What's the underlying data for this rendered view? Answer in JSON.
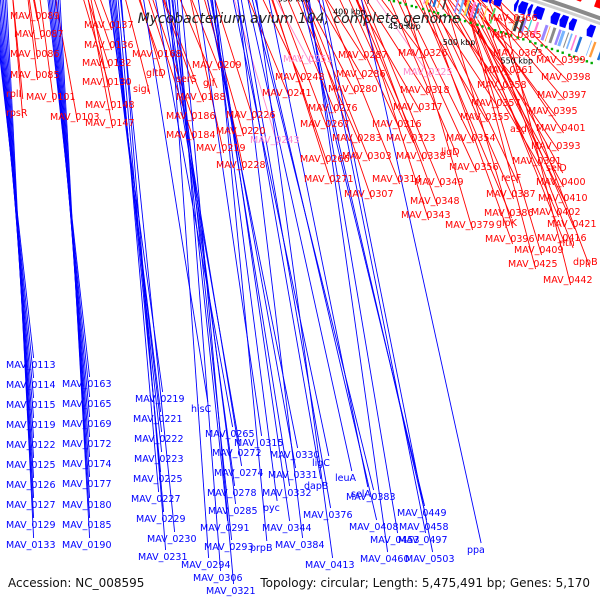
{
  "title": "Mycobacterium avium 104, complete genome",
  "footer": {
    "accession": "Accession: NC_008595",
    "summary": "Topology: circular; Length: 5,475,491 bp; Genes: 5,170"
  },
  "colors": {
    "forward": "#ff0000",
    "reverse": "#0000ff",
    "highlight": "#ff88cc",
    "backbone": "#8a8a8a",
    "rna_marks": "#00aa00"
  },
  "ticks": [
    "100 kbp",
    "150 kbp",
    "200 kbp",
    "250 kbp",
    "300 kbp",
    "350 kbp",
    "400 kbp",
    "450 kbp",
    "500 kbp",
    "550 kbp"
  ],
  "top_labels": [
    {
      "text": "MAV_0089",
      "c": "r"
    },
    {
      "text": "MAV_0087",
      "c": "r"
    },
    {
      "text": "MAV_0086",
      "c": "r"
    },
    {
      "text": "MAV_0085",
      "c": "r"
    },
    {
      "text": "rplI",
      "c": "r"
    },
    {
      "text": "rpsR",
      "c": "r"
    },
    {
      "text": "MAV_0101",
      "c": "r"
    },
    {
      "text": "MAV_0103",
      "c": "r"
    },
    {
      "text": "MAV_0137",
      "c": "r"
    },
    {
      "text": "MAV_0136",
      "c": "r"
    },
    {
      "text": "MAV_0132",
      "c": "r"
    },
    {
      "text": "MAV_0130",
      "c": "r"
    },
    {
      "text": "MAV_0148",
      "c": "r"
    },
    {
      "text": "MAV_0147",
      "c": "r"
    },
    {
      "text": "MAV_0168",
      "c": "r"
    },
    {
      "text": "gltD",
      "c": "r"
    },
    {
      "text": "sigI",
      "c": "r"
    },
    {
      "text": "serS",
      "c": "r"
    },
    {
      "text": "glf",
      "c": "r"
    },
    {
      "text": "MAV_0188",
      "c": "r"
    },
    {
      "text": "MAV_0186",
      "c": "r"
    },
    {
      "text": "MAV_0184",
      "c": "r"
    },
    {
      "text": "MAV_0209",
      "c": "r"
    },
    {
      "text": "MAV_0226",
      "c": "r"
    },
    {
      "text": "MAV_0220",
      "c": "r"
    },
    {
      "text": "MAV_0219",
      "c": "r"
    },
    {
      "text": "MAV_0228",
      "c": "r"
    },
    {
      "text": "MAV_0243",
      "c": "p"
    },
    {
      "text": "MAV_0241",
      "c": "r"
    },
    {
      "text": "MAV_0248",
      "c": "r"
    },
    {
      "text": "MAV_0251",
      "c": "p"
    },
    {
      "text": "MAV_0287",
      "c": "r"
    },
    {
      "text": "MAV_0286",
      "c": "r"
    },
    {
      "text": "MAV_0280",
      "c": "r"
    },
    {
      "text": "MAV_0276",
      "c": "r"
    },
    {
      "text": "MAV_0267",
      "c": "r"
    },
    {
      "text": "MAV_0283",
      "c": "r"
    },
    {
      "text": "MAV_0266",
      "c": "r"
    },
    {
      "text": "MAV_0271",
      "c": "r"
    },
    {
      "text": "MAV_0303",
      "c": "r"
    },
    {
      "text": "MAV_0307",
      "c": "r"
    },
    {
      "text": "MAV_0314",
      "c": "r"
    },
    {
      "text": "MAV_0326",
      "c": "r"
    },
    {
      "text": "MAV_0325",
      "c": "p"
    },
    {
      "text": "MAV_0318",
      "c": "r"
    },
    {
      "text": "MAV_0317",
      "c": "r"
    },
    {
      "text": "MAV_0316",
      "c": "r"
    },
    {
      "text": "MAV_0323",
      "c": "r"
    },
    {
      "text": "MAV_0338",
      "c": "r"
    },
    {
      "text": "MAV_0349",
      "c": "r"
    },
    {
      "text": "MAV_0348",
      "c": "r"
    },
    {
      "text": "MAV_0343",
      "c": "r"
    },
    {
      "text": "MAV_0366",
      "c": "r"
    },
    {
      "text": "MAV_0365",
      "c": "r"
    },
    {
      "text": "MAV_0363",
      "c": "r"
    },
    {
      "text": "MAV_0361",
      "c": "r"
    },
    {
      "text": "MAV_0358",
      "c": "r"
    },
    {
      "text": "MAV_0357",
      "c": "r"
    },
    {
      "text": "MAV_0355",
      "c": "r"
    },
    {
      "text": "MAV_0354",
      "c": "r"
    },
    {
      "text": "ligD",
      "c": "r"
    },
    {
      "text": "MAV_0356",
      "c": "r"
    },
    {
      "text": "MAV_0399",
      "c": "r"
    },
    {
      "text": "MAV_0398",
      "c": "r"
    },
    {
      "text": "MAV_0397",
      "c": "r"
    },
    {
      "text": "MAV_0395",
      "c": "r"
    },
    {
      "text": "asd",
      "c": "r"
    },
    {
      "text": "MAV_0401",
      "c": "r"
    },
    {
      "text": "MAV_0393",
      "c": "r"
    },
    {
      "text": "MAV_0391",
      "c": "r"
    },
    {
      "text": "selD",
      "c": "r"
    },
    {
      "text": "recF",
      "c": "r"
    },
    {
      "text": "MAV_0400",
      "c": "r"
    },
    {
      "text": "MAV_0387",
      "c": "r"
    },
    {
      "text": "MAV_0410",
      "c": "r"
    },
    {
      "text": "MAV_0386",
      "c": "r"
    },
    {
      "text": "MAV_0402",
      "c": "r"
    },
    {
      "text": "MAV_0379",
      "c": "r"
    },
    {
      "text": "glpK",
      "c": "r"
    },
    {
      "text": "MAV_0421",
      "c": "r"
    },
    {
      "text": "MAV_0396",
      "c": "r"
    },
    {
      "text": "MAV_0416",
      "c": "r"
    },
    {
      "text": "nth",
      "c": "r"
    },
    {
      "text": "MAV_0409",
      "c": "r"
    },
    {
      "text": "dppB",
      "c": "r"
    },
    {
      "text": "MAV_0425",
      "c": "r"
    },
    {
      "text": "MAV_0442",
      "c": "r"
    }
  ],
  "bottom_labels": [
    {
      "text": "MAV_0113"
    },
    {
      "text": "MAV_0114"
    },
    {
      "text": "MAV_0115"
    },
    {
      "text": "MAV_0119"
    },
    {
      "text": "MAV_0122"
    },
    {
      "text": "MAV_0125"
    },
    {
      "text": "MAV_0126"
    },
    {
      "text": "MAV_0127"
    },
    {
      "text": "MAV_0129"
    },
    {
      "text": "MAV_0133"
    },
    {
      "text": "MAV_0163"
    },
    {
      "text": "MAV_0165"
    },
    {
      "text": "MAV_0169"
    },
    {
      "text": "MAV_0172"
    },
    {
      "text": "MAV_0174"
    },
    {
      "text": "MAV_0177"
    },
    {
      "text": "MAV_0180"
    },
    {
      "text": "MAV_0185"
    },
    {
      "text": "MAV_0190"
    },
    {
      "text": "MAV_0219"
    },
    {
      "text": "MAV_0221"
    },
    {
      "text": "MAV_0222"
    },
    {
      "text": "MAV_0223"
    },
    {
      "text": "MAV_0225"
    },
    {
      "text": "MAV_0227"
    },
    {
      "text": "MAV_0229"
    },
    {
      "text": "MAV_0230"
    },
    {
      "text": "MAV_0231"
    },
    {
      "text": "hisC"
    },
    {
      "text": "MAV_0265"
    },
    {
      "text": "MAV_0272"
    },
    {
      "text": "MAV_0274"
    },
    {
      "text": "MAV_0278"
    },
    {
      "text": "MAV_0285"
    },
    {
      "text": "MAV_0291"
    },
    {
      "text": "MAV_0293"
    },
    {
      "text": "MAV_0294"
    },
    {
      "text": "MAV_0306"
    },
    {
      "text": "MAV_0321"
    },
    {
      "text": "MAV_0315"
    },
    {
      "text": "MAV_0330"
    },
    {
      "text": "MAV_0331"
    },
    {
      "text": "MAV_0332"
    },
    {
      "text": "pyc"
    },
    {
      "text": "MAV_0344"
    },
    {
      "text": "prpB"
    },
    {
      "text": "ligC"
    },
    {
      "text": "dapB"
    },
    {
      "text": "MAV_0376"
    },
    {
      "text": "MAV_0384"
    },
    {
      "text": "leuA"
    },
    {
      "text": "MAV_0383"
    },
    {
      "text": "MAV_0408"
    },
    {
      "text": "MAV_0413"
    },
    {
      "text": "selA"
    },
    {
      "text": "MAV_0449"
    },
    {
      "text": "MAV_0458"
    },
    {
      "text": "MAV_0453"
    },
    {
      "text": "MAV_0460"
    },
    {
      "text": "MAV_0497"
    },
    {
      "text": "MAV_0503"
    },
    {
      "text": "ppa"
    }
  ]
}
